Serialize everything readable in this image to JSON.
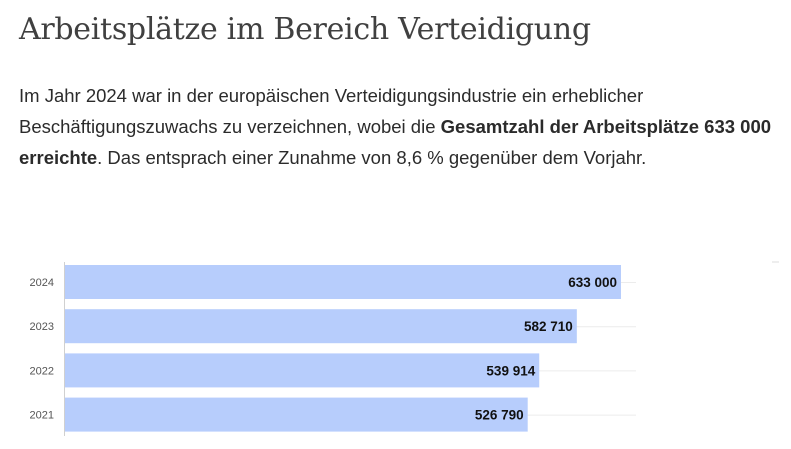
{
  "page": {
    "title": "Arbeitsplätze im Bereich Verteidigung",
    "intro": {
      "part1": "Im Jahr 2024 war in der europäischen Verteidigungsindustrie ein erheblicher Beschäftigungszuwachs zu verzeichnen, wobei die ",
      "bold": "Gesamtzahl der Arbeitsplätze 633 000 erreichte",
      "part2": ". Das entsprach einer Zunahme von 8,6 % gegenüber dem Vorjahr."
    }
  },
  "chart_data": {
    "type": "bar",
    "orientation": "horizontal",
    "categories": [
      "2024",
      "2023",
      "2022",
      "2021"
    ],
    "values": [
      633000,
      582710,
      539914,
      526790
    ],
    "value_labels": [
      "633 000",
      "582 710",
      "539 914",
      "526 790"
    ],
    "xlim": [
      0,
      633000
    ],
    "grid": true,
    "bar_color": "#b7cdfc",
    "label_color": "#111111"
  }
}
